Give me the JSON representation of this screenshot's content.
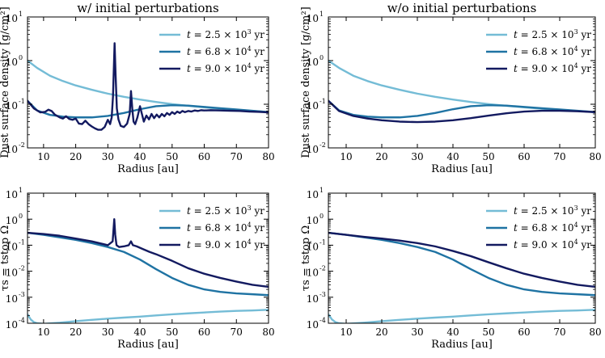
{
  "figure": {
    "colors": {
      "t1": "#74bcd6",
      "t2": "#1f73a3",
      "t3": "#131a60"
    },
    "legend_entries": [
      {
        "prefix": "t",
        "text": " = 2.5 × 10",
        "exp": "3",
        "unit": " yr"
      },
      {
        "prefix": "t",
        "text": " = 6.8 × 10",
        "exp": "4",
        "unit": " yr"
      },
      {
        "prefix": "t",
        "text": " = 9.0 × 10",
        "exp": "4",
        "unit": " yr"
      }
    ]
  },
  "chart_data": [
    {
      "type": "line",
      "title": "w/ initial perturbations",
      "xlabel": "Radius [au]",
      "ylabel": "Dust surface density [g/cm²]",
      "xlim": [
        5,
        80
      ],
      "ylim": [
        0.01,
        10
      ],
      "yscale": "log",
      "xticks": [
        10,
        20,
        30,
        40,
        50,
        60,
        70,
        80
      ],
      "yticks": [
        {
          "mant": "10",
          "exp": "-2",
          "v": 0.01
        },
        {
          "mant": "10",
          "exp": "-1",
          "v": 0.1
        },
        {
          "mant": "10",
          "exp": "0",
          "v": 1
        },
        {
          "mant": "10",
          "exp": "1",
          "v": 10
        }
      ],
      "legend_position": "top-right",
      "series": [
        {
          "label_index": 0,
          "color_key": "t1",
          "x": [
            5,
            8,
            12,
            16,
            20,
            25,
            30,
            35,
            40,
            45,
            50,
            55,
            60,
            65,
            70,
            75,
            80
          ],
          "y": [
            1.0,
            0.68,
            0.45,
            0.34,
            0.27,
            0.215,
            0.175,
            0.148,
            0.128,
            0.113,
            0.101,
            0.092,
            0.085,
            0.079,
            0.074,
            0.07,
            0.066
          ]
        },
        {
          "label_index": 1,
          "color_key": "t2",
          "x": [
            5,
            8,
            12,
            16,
            20,
            25,
            30,
            35,
            40,
            45,
            50,
            55,
            60,
            65,
            70,
            75,
            80
          ],
          "y": [
            0.12,
            0.072,
            0.057,
            0.052,
            0.05,
            0.05,
            0.054,
            0.063,
            0.077,
            0.09,
            0.095,
            0.093,
            0.087,
            0.081,
            0.076,
            0.071,
            0.066
          ]
        },
        {
          "label_index": 2,
          "color_key": "t3",
          "x": [
            5,
            7,
            9,
            10.5,
            11.5,
            12.5,
            13.5,
            15,
            16,
            17,
            18,
            19,
            20,
            21,
            22,
            23,
            24,
            25,
            26,
            27,
            28,
            29,
            30,
            30.7,
            31.2,
            31.6,
            31.9,
            32.1,
            32.4,
            32.8,
            33.3,
            34,
            35,
            36,
            36.8,
            37.2,
            37.6,
            38,
            38.5,
            39.2,
            40,
            40.6,
            41.2,
            42,
            42.8,
            43.6,
            44.4,
            45.2,
            46,
            46.8,
            47.6,
            48.4,
            49.2,
            50,
            50.8,
            51.6,
            52.4,
            53.2,
            54,
            55,
            56,
            57,
            58,
            59,
            60,
            62,
            65,
            68,
            71,
            74,
            77,
            80
          ],
          "y": [
            0.12,
            0.08,
            0.065,
            0.067,
            0.075,
            0.07,
            0.058,
            0.05,
            0.047,
            0.053,
            0.046,
            0.044,
            0.047,
            0.036,
            0.035,
            0.042,
            0.035,
            0.031,
            0.028,
            0.026,
            0.026,
            0.03,
            0.044,
            0.035,
            0.05,
            0.15,
            0.8,
            2.5,
            0.5,
            0.08,
            0.045,
            0.032,
            0.03,
            0.036,
            0.06,
            0.2,
            0.08,
            0.04,
            0.035,
            0.05,
            0.09,
            0.06,
            0.04,
            0.055,
            0.045,
            0.06,
            0.048,
            0.058,
            0.05,
            0.06,
            0.053,
            0.063,
            0.057,
            0.066,
            0.06,
            0.068,
            0.063,
            0.07,
            0.066,
            0.07,
            0.068,
            0.072,
            0.07,
            0.073,
            0.072,
            0.073,
            0.072,
            0.071,
            0.07,
            0.068,
            0.067,
            0.065
          ]
        }
      ]
    },
    {
      "type": "line",
      "title": "w/o initial perturbations",
      "xlabel": "Radius [au]",
      "ylabel": "Dust surface density [g/cm²]",
      "xlim": [
        5,
        80
      ],
      "ylim": [
        0.01,
        10
      ],
      "yscale": "log",
      "xticks": [
        10,
        20,
        30,
        40,
        50,
        60,
        70,
        80
      ],
      "yticks": [
        {
          "mant": "10",
          "exp": "-2",
          "v": 0.01
        },
        {
          "mant": "10",
          "exp": "-1",
          "v": 0.1
        },
        {
          "mant": "10",
          "exp": "0",
          "v": 1
        },
        {
          "mant": "10",
          "exp": "1",
          "v": 10
        }
      ],
      "legend_position": "top-right",
      "series": [
        {
          "label_index": 0,
          "color_key": "t1",
          "x": [
            5,
            8,
            12,
            16,
            20,
            25,
            30,
            35,
            40,
            45,
            50,
            55,
            60,
            65,
            70,
            75,
            80
          ],
          "y": [
            1.0,
            0.68,
            0.45,
            0.34,
            0.27,
            0.215,
            0.175,
            0.148,
            0.128,
            0.113,
            0.101,
            0.092,
            0.085,
            0.079,
            0.074,
            0.07,
            0.066
          ]
        },
        {
          "label_index": 1,
          "color_key": "t2",
          "x": [
            5,
            8,
            12,
            16,
            20,
            25,
            30,
            35,
            40,
            45,
            50,
            55,
            60,
            65,
            70,
            75,
            80
          ],
          "y": [
            0.12,
            0.072,
            0.057,
            0.052,
            0.05,
            0.05,
            0.054,
            0.063,
            0.077,
            0.09,
            0.095,
            0.093,
            0.087,
            0.081,
            0.076,
            0.071,
            0.066
          ]
        },
        {
          "label_index": 2,
          "color_key": "t3",
          "x": [
            5,
            8,
            12,
            16,
            20,
            25,
            30,
            35,
            40,
            45,
            50,
            55,
            60,
            65,
            70,
            75,
            80
          ],
          "y": [
            0.12,
            0.07,
            0.054,
            0.047,
            0.043,
            0.04,
            0.039,
            0.04,
            0.043,
            0.048,
            0.055,
            0.062,
            0.068,
            0.071,
            0.071,
            0.069,
            0.066
          ]
        }
      ]
    },
    {
      "type": "line",
      "title": "",
      "xlabel": "Radius [au]",
      "ylabel": "τs = tstop Ω",
      "xlim": [
        5,
        80
      ],
      "ylim": [
        0.0001,
        10
      ],
      "yscale": "log",
      "xticks": [
        10,
        20,
        30,
        40,
        50,
        60,
        70,
        80
      ],
      "yticks": [
        {
          "mant": "10",
          "exp": "-4",
          "v": 0.0001
        },
        {
          "mant": "10",
          "exp": "-3",
          "v": 0.001
        },
        {
          "mant": "10",
          "exp": "-2",
          "v": 0.01
        },
        {
          "mant": "10",
          "exp": "-1",
          "v": 0.1
        },
        {
          "mant": "10",
          "exp": "0",
          "v": 1
        },
        {
          "mant": "10",
          "exp": "1",
          "v": 10
        }
      ],
      "legend_position": "top-right",
      "series": [
        {
          "label_index": 0,
          "color_key": "t1",
          "x": [
            5,
            6,
            7,
            8,
            10,
            15,
            20,
            25,
            30,
            35,
            40,
            45,
            50,
            55,
            60,
            65,
            70,
            75,
            80
          ],
          "y": [
            0.00022,
            0.00014,
            0.00011,
            0.0001,
            9.5e-05,
            0.000105,
            0.00012,
            0.000135,
            0.00015,
            0.000165,
            0.00018,
            0.0002,
            0.00022,
            0.00024,
            0.00026,
            0.00028,
            0.0003,
            0.00031,
            0.00033
          ]
        },
        {
          "label_index": 1,
          "color_key": "t2",
          "x": [
            5,
            10,
            15,
            20,
            25,
            30,
            35,
            40,
            45,
            50,
            55,
            60,
            65,
            70,
            75,
            80
          ],
          "y": [
            0.3,
            0.25,
            0.2,
            0.16,
            0.12,
            0.085,
            0.055,
            0.028,
            0.012,
            0.0055,
            0.003,
            0.002,
            0.0016,
            0.0014,
            0.0013,
            0.0012
          ]
        },
        {
          "label_index": 2,
          "color_key": "t3",
          "x": [
            5,
            10,
            15,
            20,
            25,
            30,
            31.5,
            32,
            32.3,
            32.7,
            33.5,
            35,
            36.5,
            37.2,
            37.8,
            39,
            41,
            43,
            45,
            50,
            55,
            60,
            65,
            70,
            75,
            80
          ],
          "y": [
            0.3,
            0.27,
            0.23,
            0.18,
            0.14,
            0.1,
            0.14,
            1.0,
            0.25,
            0.1,
            0.085,
            0.09,
            0.1,
            0.14,
            0.1,
            0.09,
            0.07,
            0.055,
            0.045,
            0.025,
            0.013,
            0.008,
            0.0055,
            0.004,
            0.003,
            0.0025
          ]
        }
      ]
    },
    {
      "type": "line",
      "title": "",
      "xlabel": "Radius [au]",
      "ylabel": "τs = tstop Ω",
      "xlim": [
        5,
        80
      ],
      "ylim": [
        0.0001,
        10
      ],
      "yscale": "log",
      "xticks": [
        10,
        20,
        30,
        40,
        50,
        60,
        70,
        80
      ],
      "yticks": [
        {
          "mant": "10",
          "exp": "-4",
          "v": 0.0001
        },
        {
          "mant": "10",
          "exp": "-3",
          "v": 0.001
        },
        {
          "mant": "10",
          "exp": "-2",
          "v": 0.01
        },
        {
          "mant": "10",
          "exp": "-1",
          "v": 0.1
        },
        {
          "mant": "10",
          "exp": "0",
          "v": 1
        },
        {
          "mant": "10",
          "exp": "1",
          "v": 10
        }
      ],
      "legend_position": "top-right",
      "series": [
        {
          "label_index": 0,
          "color_key": "t1",
          "x": [
            5,
            6,
            7,
            8,
            10,
            15,
            20,
            25,
            30,
            35,
            40,
            45,
            50,
            55,
            60,
            65,
            70,
            75,
            80
          ],
          "y": [
            0.00022,
            0.00014,
            0.00011,
            0.0001,
            9.5e-05,
            0.000105,
            0.00012,
            0.000135,
            0.00015,
            0.000165,
            0.00018,
            0.0002,
            0.00022,
            0.00024,
            0.00026,
            0.00028,
            0.0003,
            0.00031,
            0.00033
          ]
        },
        {
          "label_index": 1,
          "color_key": "t2",
          "x": [
            5,
            10,
            15,
            20,
            25,
            30,
            35,
            40,
            45,
            50,
            55,
            60,
            65,
            70,
            75,
            80
          ],
          "y": [
            0.3,
            0.25,
            0.2,
            0.16,
            0.12,
            0.085,
            0.055,
            0.028,
            0.012,
            0.0055,
            0.003,
            0.002,
            0.0016,
            0.0014,
            0.0013,
            0.0012
          ]
        },
        {
          "label_index": 2,
          "color_key": "t3",
          "x": [
            5,
            10,
            15,
            20,
            25,
            30,
            35,
            40,
            45,
            50,
            55,
            60,
            65,
            70,
            75,
            80
          ],
          "y": [
            0.3,
            0.25,
            0.21,
            0.18,
            0.15,
            0.12,
            0.09,
            0.06,
            0.038,
            0.022,
            0.013,
            0.008,
            0.0055,
            0.004,
            0.003,
            0.0025
          ]
        }
      ]
    }
  ]
}
